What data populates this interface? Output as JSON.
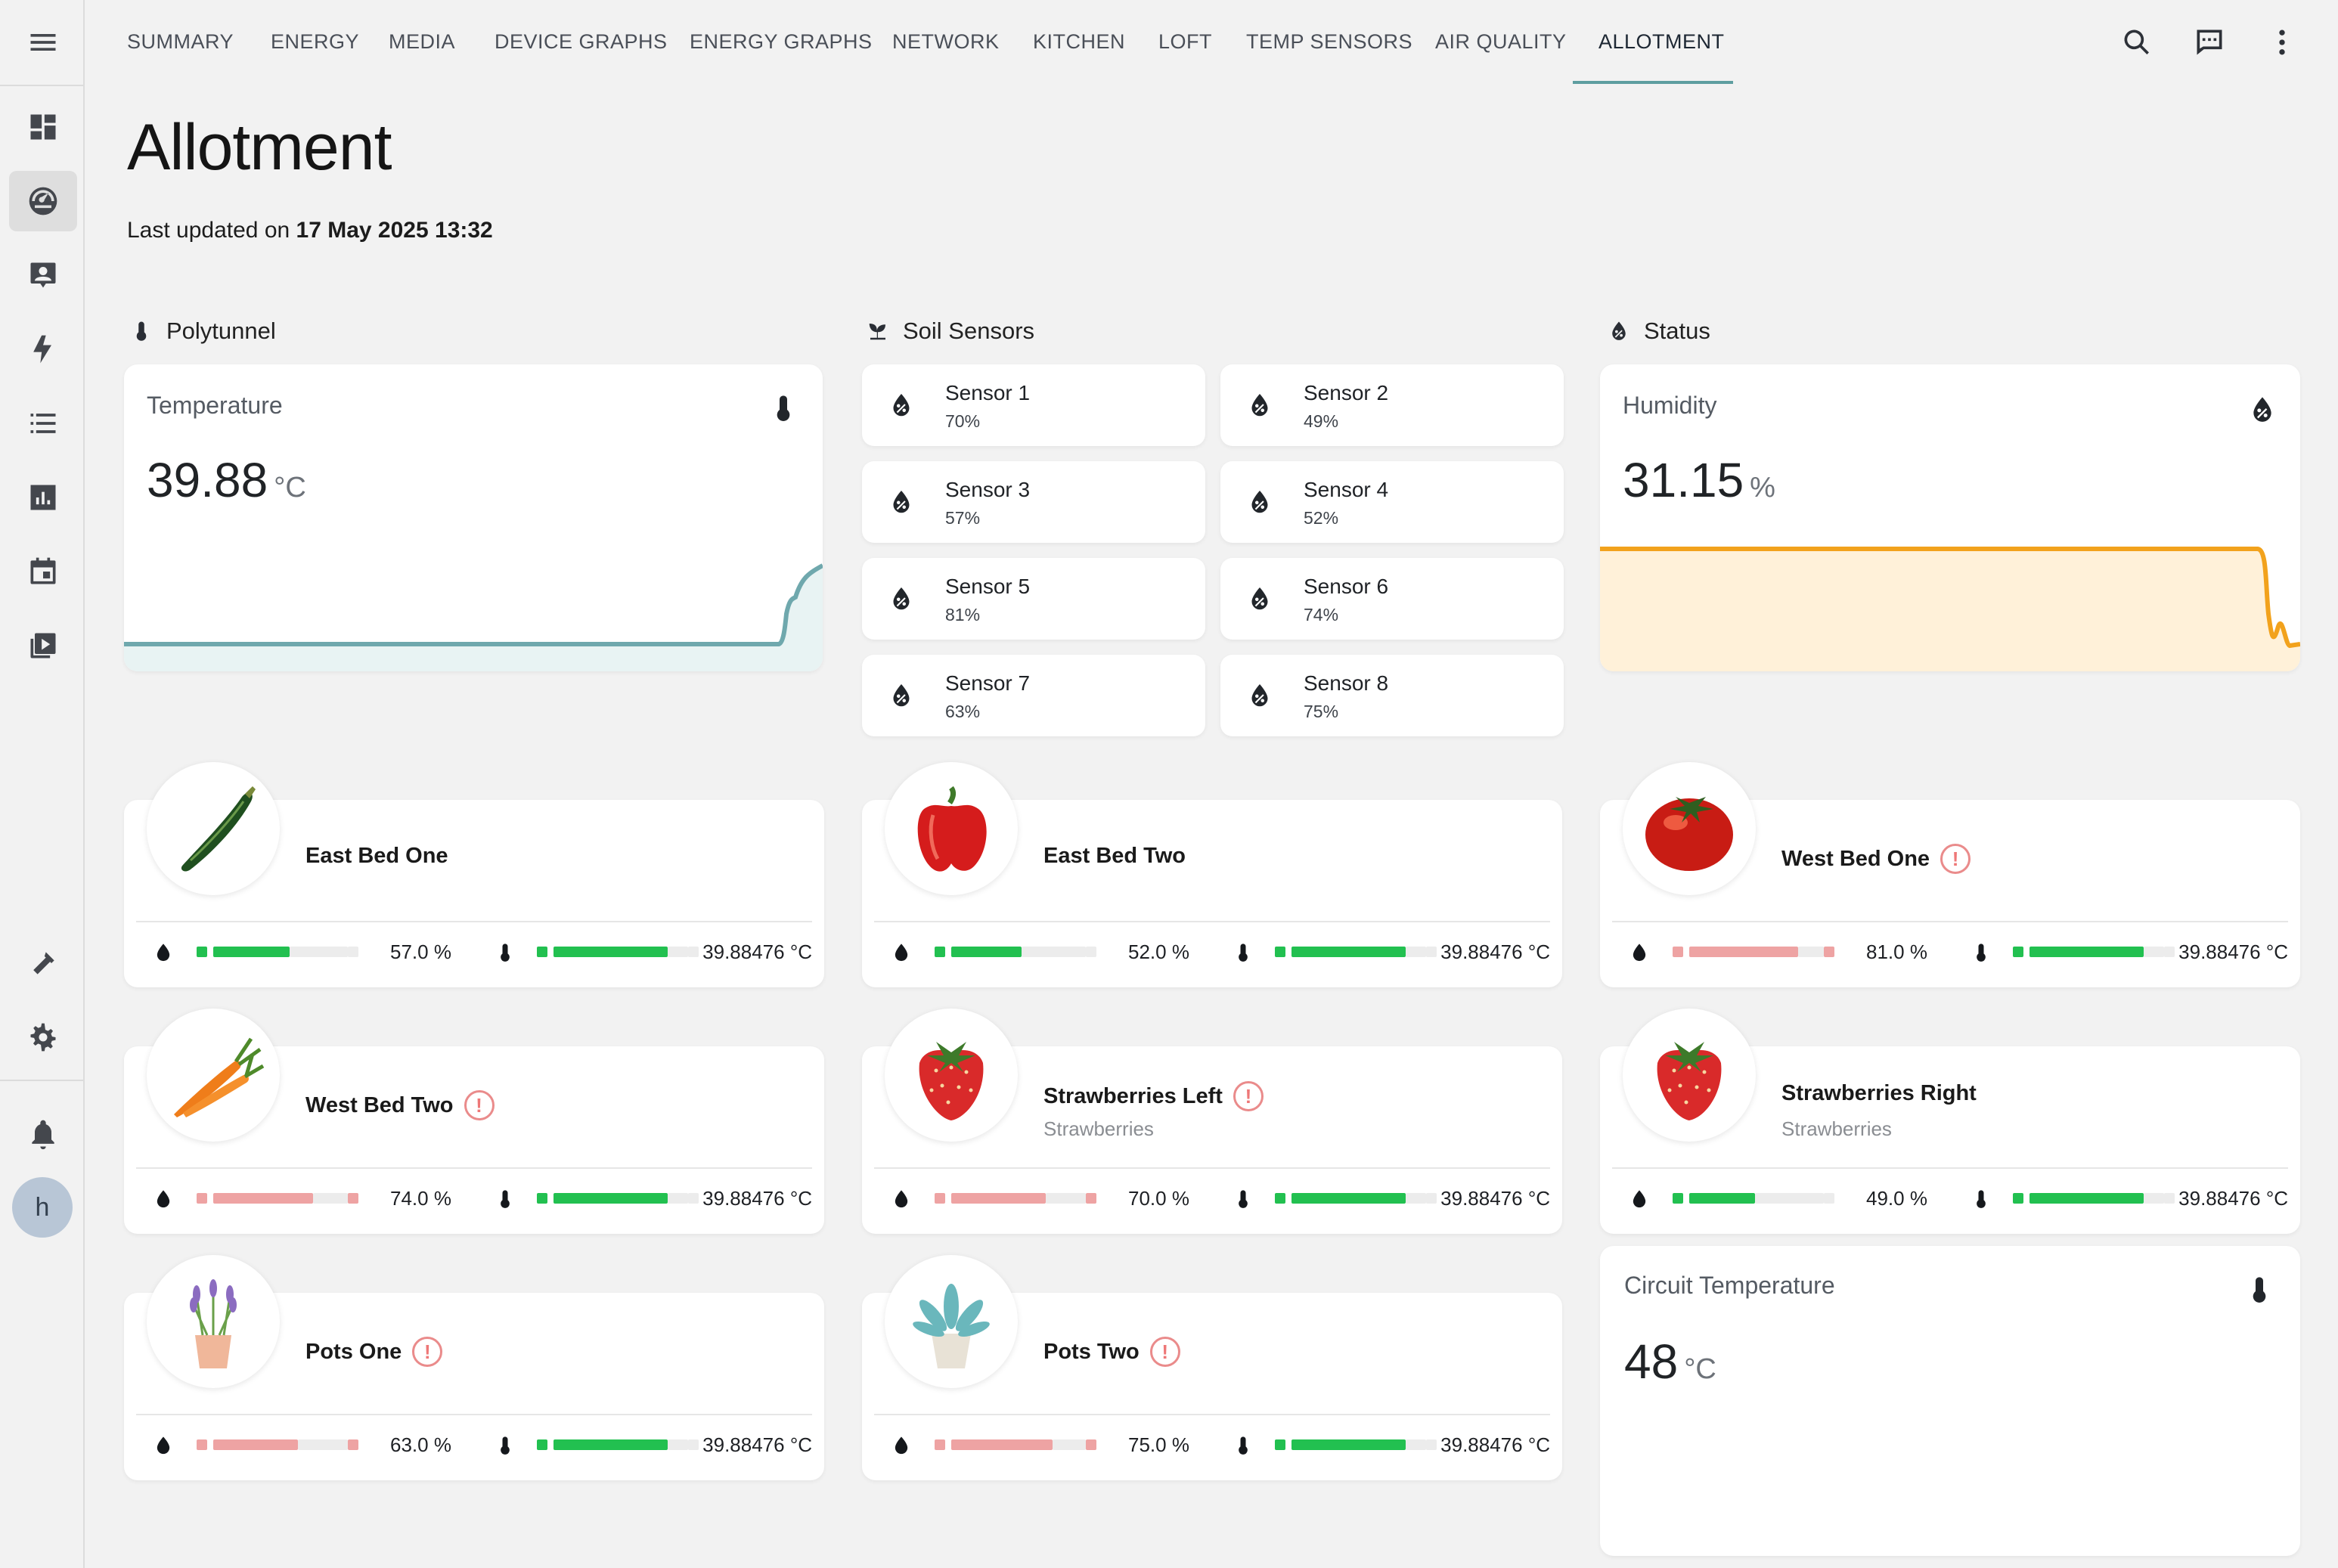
{
  "colors": {
    "accent": "#5e9ea0",
    "green": "#22c050",
    "pink": "#eea3a3",
    "orange": "#f2a21c",
    "orange_fill": "#fff1d9",
    "teal_line": "#6fa8ad",
    "teal_fill": "#e8f3f3"
  },
  "tabs": [
    {
      "label": "SUMMARY"
    },
    {
      "label": "ENERGY"
    },
    {
      "label": "MEDIA"
    },
    {
      "label": "DEVICE GRAPHS"
    },
    {
      "label": "ENERGY GRAPHS"
    },
    {
      "label": "NETWORK"
    },
    {
      "label": "KITCHEN"
    },
    {
      "label": "LOFT"
    },
    {
      "label": "TEMP SENSORS"
    },
    {
      "label": "AIR QUALITY"
    },
    {
      "label": "ALLOTMENT"
    }
  ],
  "active_tab": "ALLOTMENT",
  "toolbar_icons": [
    "search-icon",
    "chat-icon",
    "more-vert-icon"
  ],
  "sidebar_icons": [
    "menu-icon",
    "dashboard-icon",
    "gauge-icon",
    "account-box-icon",
    "lightning-icon",
    "list-icon",
    "chart-icon",
    "calendar-icon",
    "media-icon",
    "hammer-icon",
    "cog-icon",
    "bell-icon"
  ],
  "user": {
    "initial": "h"
  },
  "page": {
    "title": "Allotment",
    "updated_prefix": "Last updated on ",
    "updated_value": "17 May 2025 13:32"
  },
  "sections": {
    "polytunnel": "Polytunnel",
    "soil": "Soil Sensors",
    "status": "Status"
  },
  "temperature": {
    "label": "Temperature",
    "value": "39.88",
    "unit": "°C",
    "icon": "thermometer-icon"
  },
  "humidity": {
    "label": "Humidity",
    "value": "31.15",
    "unit": "%",
    "icon": "water-percent-icon"
  },
  "circuit": {
    "label": "Circuit Temperature",
    "value": "48",
    "unit": "°C",
    "icon": "thermometer-icon"
  },
  "soil_sensors": [
    {
      "name": "Sensor 1",
      "value": "70%"
    },
    {
      "name": "Sensor 2",
      "value": "49%"
    },
    {
      "name": "Sensor 3",
      "value": "57%"
    },
    {
      "name": "Sensor 4",
      "value": "52%"
    },
    {
      "name": "Sensor 5",
      "value": "81%"
    },
    {
      "name": "Sensor 6",
      "value": "74%"
    },
    {
      "name": "Sensor 7",
      "value": "63%"
    },
    {
      "name": "Sensor 8",
      "value": "75%"
    }
  ],
  "beds": [
    {
      "name": "East Bed One",
      "image": "courgette",
      "warning": false,
      "sub": "",
      "moisture": "57.0 %",
      "moisture_level": 0.57,
      "moisture_state": "ok",
      "temp": "39.88476 °C",
      "temp_level": 0.85
    },
    {
      "name": "East Bed Two",
      "image": "red-pepper",
      "warning": false,
      "sub": "",
      "moisture": "52.0 %",
      "moisture_level": 0.52,
      "moisture_state": "ok",
      "temp": "39.88476 °C",
      "temp_level": 0.85
    },
    {
      "name": "West Bed One",
      "image": "tomato",
      "warning": true,
      "sub": "",
      "moisture": "81.0 %",
      "moisture_level": 0.81,
      "moisture_state": "alert",
      "temp": "39.88476 °C",
      "temp_level": 0.85
    },
    {
      "name": "West Bed Two",
      "image": "carrots",
      "warning": true,
      "sub": "",
      "moisture": "74.0 %",
      "moisture_level": 0.74,
      "moisture_state": "alert",
      "temp": "39.88476 °C",
      "temp_level": 0.85
    },
    {
      "name": "Strawberries Left",
      "image": "strawberry",
      "warning": true,
      "sub": "Strawberries",
      "moisture": "70.0 %",
      "moisture_level": 0.7,
      "moisture_state": "alert",
      "temp": "39.88476 °C",
      "temp_level": 0.85
    },
    {
      "name": "Strawberries Right",
      "image": "strawberry",
      "warning": false,
      "sub": "Strawberries",
      "moisture": "49.0 %",
      "moisture_level": 0.49,
      "moisture_state": "ok",
      "temp": "39.88476 °C",
      "temp_level": 0.85
    },
    {
      "name": "Pots One",
      "image": "lavender-pot",
      "warning": true,
      "sub": "",
      "moisture": "63.0 %",
      "moisture_level": 0.63,
      "moisture_state": "alert",
      "temp": "39.88476 °C",
      "temp_level": 0.85
    },
    {
      "name": "Pots Two",
      "image": "succulent-pot",
      "warning": true,
      "sub": "",
      "moisture": "75.0 %",
      "moisture_level": 0.75,
      "moisture_state": "alert",
      "temp": "39.88476 °C",
      "temp_level": 0.85
    }
  ]
}
